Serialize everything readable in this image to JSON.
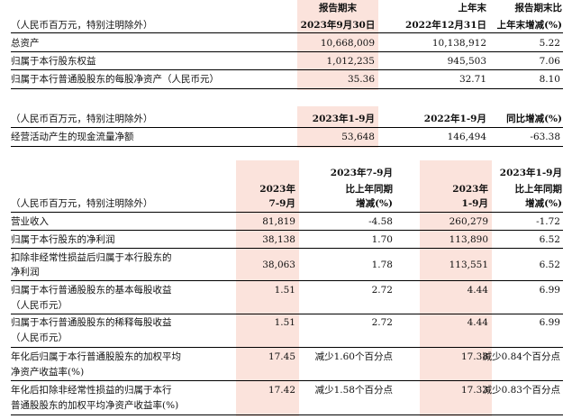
{
  "unit_note": "（人民币百万元，特别注明除外）",
  "section1": {
    "headers": {
      "c1_line1": "报告期末",
      "c1_line2": "2023年9月30日",
      "c2_line1": "上年末",
      "c2_line2": "2022年12月31日",
      "c3_line1": "报告期末比",
      "c3_line2": "上年末增减(%)"
    },
    "rows": [
      {
        "label": "总资产",
        "v1": "10,668,009",
        "v2": "10,138,912",
        "v3": "5.22"
      },
      {
        "label": "归属于本行股东权益",
        "v1": "1,012,235",
        "v2": "945,503",
        "v3": "7.06"
      },
      {
        "label": "归属于本行普通股股东的每股净资产（人民币元）",
        "v1": "35.36",
        "v2": "32.71",
        "v3": "8.10"
      }
    ]
  },
  "section2": {
    "unit_note": "（人民币百万元，特别注明除外）",
    "headers": {
      "c1": "2023年1-9月",
      "c2": "2022年1-9月",
      "c3": "同比增减(%)"
    },
    "rows": [
      {
        "label": "经营活动产生的现金流量净额",
        "v1": "53,648",
        "v2": "146,494",
        "v3": "-63.38"
      }
    ]
  },
  "section3": {
    "unit_note": "（人民币百万元，特别注明除外）",
    "headers": {
      "c1_line1": "2023年",
      "c1_line2": "7-9月",
      "c2_line1": "2023年7-9月",
      "c2_line2": "比上年同期",
      "c2_line3": "增减(%)",
      "c3_line1": "2023年",
      "c3_line2": "1-9月",
      "c4_line1": "2023年1-9月",
      "c4_line2": "比上年同期",
      "c4_line3": "增减(%)"
    },
    "rows": [
      {
        "label1": "营业收入",
        "label2": "",
        "v1": "81,819",
        "v2": "-4.58",
        "v3": "260,279",
        "v4": "-1.72"
      },
      {
        "label1": "归属于本行股东的净利润",
        "label2": "",
        "v1": "38,138",
        "v2": "1.70",
        "v3": "113,890",
        "v4": "6.52"
      },
      {
        "label1": "扣除非经常性损益后归属于本行股东的",
        "label2": "净利润",
        "v1": "38,063",
        "v2": "1.78",
        "v3": "113,551",
        "v4": "6.52"
      },
      {
        "label1": "归属于本行普通股股东的基本每股收益",
        "label2": "（人民币元）",
        "v1": "1.51",
        "v2": "2.72",
        "v3": "4.44",
        "v4": "6.99"
      },
      {
        "label1": "归属于本行普通股股东的稀释每股收益",
        "label2": "（人民币元）",
        "v1": "1.51",
        "v2": "2.72",
        "v3": "4.44",
        "v4": "6.99"
      },
      {
        "label1": "年化后归属于本行普通股股东的加权平均",
        "label2": "净资产收益率(%)",
        "v1": "17.45",
        "v2": "减少1.60个百分点",
        "v3": "17.38",
        "v4": "减少0.84个百分点"
      },
      {
        "label1": "年化后扣除非经常性损益的归属于本行",
        "label2": "普通股股东的加权平均净资产收益率(%)",
        "v1": "17.42",
        "v2": "减少1.58个百分点",
        "v3": "17.33",
        "v4": "减少0.83个百分点"
      }
    ]
  }
}
